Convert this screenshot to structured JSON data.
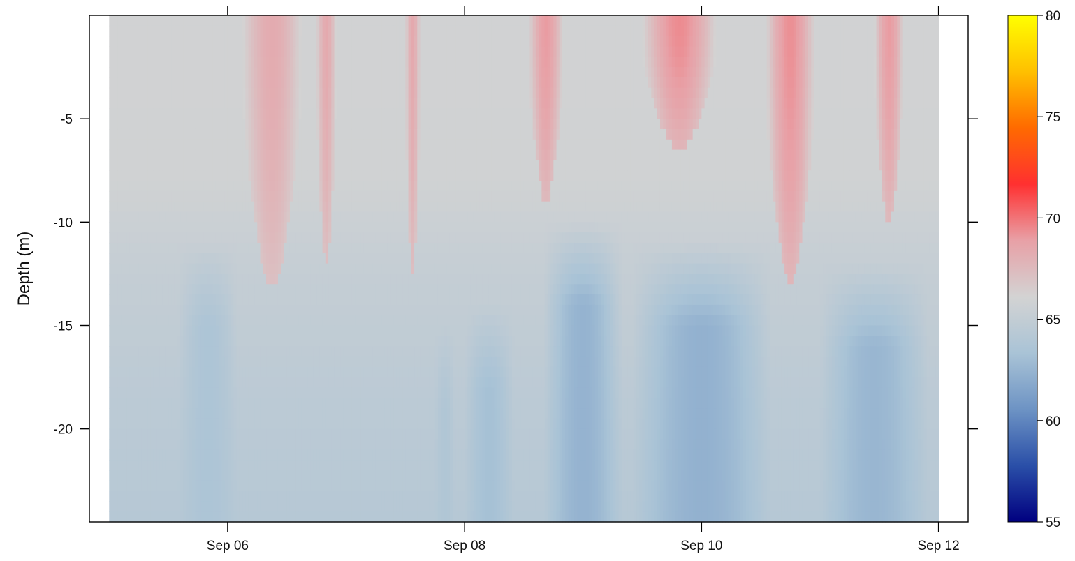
{
  "chart_data": {
    "type": "heatmap",
    "title": "",
    "xlabel": "",
    "ylabel": "Depth (m)",
    "x_ticks": [
      {
        "value": "2014-09-06",
        "label": "Sep 06"
      },
      {
        "value": "2014-09-08",
        "label": "Sep 08"
      },
      {
        "value": "2014-09-10",
        "label": "Sep 10"
      },
      {
        "value": "2014-09-12",
        "label": "Sep 12"
      }
    ],
    "y_ticks": [
      -5,
      -10,
      -15,
      -20
    ],
    "xlim": [
      "2014-09-04T20:00",
      "2014-09-12T06:00"
    ],
    "data_xrange": [
      "2014-09-05T00:00",
      "2014-09-12T00:00"
    ],
    "ylim": [
      -24.5,
      0
    ],
    "colorbar": {
      "ticks": [
        55,
        60,
        65,
        70,
        75,
        80
      ],
      "range": [
        55,
        80
      ],
      "colors": [
        "#000080",
        "#2a4fa8",
        "#6d93c4",
        "#a9c3d6",
        "#d3d3d3",
        "#e8a0a6",
        "#ff3030",
        "#ff6a00",
        "#ffc000",
        "#ffff00"
      ]
    },
    "baseline_profile": [
      {
        "depth": 0,
        "value": 66.0
      },
      {
        "depth": -8,
        "value": 65.9
      },
      {
        "depth": -12,
        "value": 65.2
      },
      {
        "depth": -18,
        "value": 64.6
      },
      {
        "depth": -24.5,
        "value": 64.2
      }
    ],
    "warm_events": [
      {
        "start": "2014-09-06T03:00",
        "end": "2014-09-06T15:00",
        "bottom": -13,
        "peak": 68.3
      },
      {
        "start": "2014-09-06T18:00",
        "end": "2014-09-06T22:00",
        "bottom": -12,
        "peak": 68.4
      },
      {
        "start": "2014-09-07T12:00",
        "end": "2014-09-07T15:00",
        "bottom": -12.5,
        "peak": 68.4
      },
      {
        "start": "2014-09-08T13:00",
        "end": "2014-09-08T20:00",
        "bottom": -9,
        "peak": 69.0
      },
      {
        "start": "2014-09-09T12:00",
        "end": "2014-09-10T03:00",
        "bottom": -6.5,
        "peak": 69.4
      },
      {
        "start": "2014-09-10T13:00",
        "end": "2014-09-10T23:00",
        "bottom": -13,
        "peak": 69.3
      },
      {
        "start": "2014-09-11T11:00",
        "end": "2014-09-11T17:00",
        "bottom": -10,
        "peak": 69.0
      }
    ],
    "cool_events": [
      {
        "start": "2014-09-05T14:00",
        "end": "2014-09-06T02:00",
        "top": -11,
        "low": 63.6
      },
      {
        "start": "2014-09-07T18:00",
        "end": "2014-09-07T22:00",
        "top": -15,
        "low": 63.8
      },
      {
        "start": "2014-09-08T00:00",
        "end": "2014-09-08T10:00",
        "top": -14,
        "low": 63.2
      },
      {
        "start": "2014-09-08T16:00",
        "end": "2014-09-09T08:00",
        "top": -10,
        "low": 62.4
      },
      {
        "start": "2014-09-09T10:00",
        "end": "2014-09-10T14:00",
        "top": -11,
        "low": 62.3
      },
      {
        "start": "2014-09-11T00:00",
        "end": "2014-09-11T22:00",
        "top": -12,
        "low": 62.6
      }
    ]
  }
}
